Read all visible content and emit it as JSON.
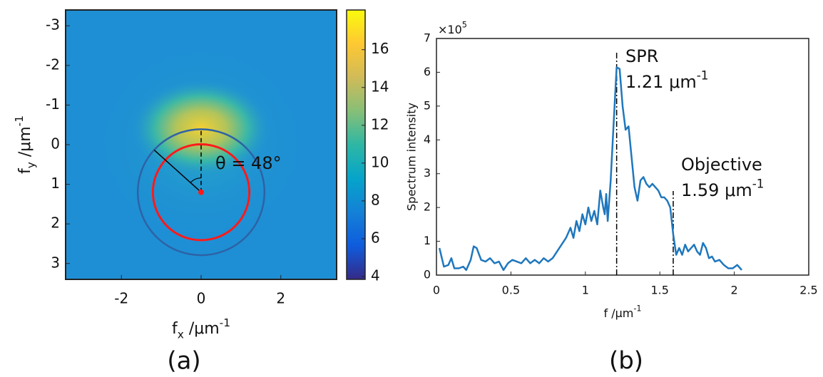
{
  "chart_data": [
    {
      "type": "image",
      "panel_label": "(a)",
      "xlabel": {
        "base": "f",
        "sub": "x",
        "unit": " /μm",
        "sup": "-1"
      },
      "ylabel": {
        "base": "f",
        "sub": "y",
        "unit": " /μm",
        "sup": "-1"
      },
      "xlim": [
        -3.4,
        3.4
      ],
      "ylim": [
        3.4,
        -3.4
      ],
      "xticks": [
        -2,
        0,
        2
      ],
      "yticks": [
        -3,
        -2,
        -1,
        0,
        1,
        2,
        3
      ],
      "colorbar": {
        "clim": [
          3.85,
          18.1
        ],
        "ticks": [
          4,
          6,
          8,
          10,
          12,
          14,
          16
        ],
        "colormap": [
          "#352a87",
          "#0f5cdd",
          "#1481d6",
          "#06a4ca",
          "#2eb7a4",
          "#87bf77",
          "#d1bb59",
          "#fec832",
          "#f9fb0e"
        ]
      },
      "circles": [
        {
          "cx": 0,
          "cy": 1.2,
          "r": 1.21,
          "color": "#ff1a1a"
        },
        {
          "cx": 0,
          "cy": 1.2,
          "r": 1.59,
          "color": "#2e62a6"
        }
      ],
      "angle": 48,
      "annotation": "θ = 48°"
    },
    {
      "type": "line",
      "panel_label": "(b)",
      "xlabel": {
        "base": "f /μm",
        "sup": "-1"
      },
      "ylabel": "Spectrum intensity",
      "y_multiplier": {
        "base": "×10",
        "sup": "5"
      },
      "xlim": [
        0,
        2.5
      ],
      "ylim": [
        0,
        7
      ],
      "xticks": [
        0,
        0.5,
        1,
        1.5,
        2,
        2.5
      ],
      "yticks": [
        0,
        1,
        2,
        3,
        4,
        5,
        6,
        7
      ],
      "x": [
        0.02,
        0.05,
        0.08,
        0.1,
        0.12,
        0.15,
        0.18,
        0.2,
        0.23,
        0.25,
        0.27,
        0.3,
        0.33,
        0.36,
        0.39,
        0.42,
        0.45,
        0.48,
        0.51,
        0.54,
        0.57,
        0.6,
        0.63,
        0.66,
        0.69,
        0.72,
        0.75,
        0.78,
        0.81,
        0.84,
        0.87,
        0.9,
        0.92,
        0.94,
        0.96,
        0.98,
        1.0,
        1.02,
        1.04,
        1.06,
        1.08,
        1.1,
        1.12,
        1.13,
        1.14,
        1.15,
        1.17,
        1.19,
        1.21,
        1.23,
        1.25,
        1.27,
        1.29,
        1.31,
        1.33,
        1.35,
        1.37,
        1.39,
        1.41,
        1.43,
        1.45,
        1.47,
        1.49,
        1.51,
        1.53,
        1.55,
        1.57,
        1.59,
        1.61,
        1.63,
        1.65,
        1.67,
        1.69,
        1.71,
        1.73,
        1.75,
        1.77,
        1.79,
        1.81,
        1.83,
        1.85,
        1.87,
        1.9,
        1.93,
        1.96,
        1.99,
        2.02,
        2.05
      ],
      "series": [
        {
          "color": "#1f77bd",
          "values": [
            0.8,
            0.25,
            0.3,
            0.5,
            0.2,
            0.2,
            0.25,
            0.15,
            0.45,
            0.85,
            0.8,
            0.45,
            0.4,
            0.5,
            0.35,
            0.4,
            0.15,
            0.35,
            0.45,
            0.4,
            0.35,
            0.5,
            0.35,
            0.45,
            0.35,
            0.5,
            0.4,
            0.5,
            0.7,
            0.9,
            1.1,
            1.4,
            1.1,
            1.6,
            1.3,
            1.8,
            1.5,
            2.0,
            1.6,
            1.9,
            1.5,
            2.5,
            2.0,
            1.8,
            2.4,
            1.6,
            2.8,
            4.5,
            6.15,
            6.1,
            5.0,
            4.3,
            4.4,
            3.5,
            2.6,
            2.2,
            2.8,
            2.9,
            2.7,
            2.6,
            2.7,
            2.6,
            2.5,
            2.3,
            2.3,
            2.2,
            2.0,
            1.2,
            0.6,
            0.8,
            0.6,
            0.9,
            0.7,
            0.8,
            0.9,
            0.7,
            0.6,
            0.95,
            0.8,
            0.5,
            0.55,
            0.4,
            0.45,
            0.3,
            0.2,
            0.2,
            0.3,
            0.15
          ]
        }
      ],
      "markers": [
        {
          "x": 1.21,
          "name": "SPR",
          "value_label": {
            "base": "1.21 μm",
            "sup": "-1"
          }
        },
        {
          "x": 1.59,
          "name": "Objective",
          "value_label": {
            "base": "1.59 μm",
            "sup": "-1"
          }
        }
      ]
    }
  ]
}
